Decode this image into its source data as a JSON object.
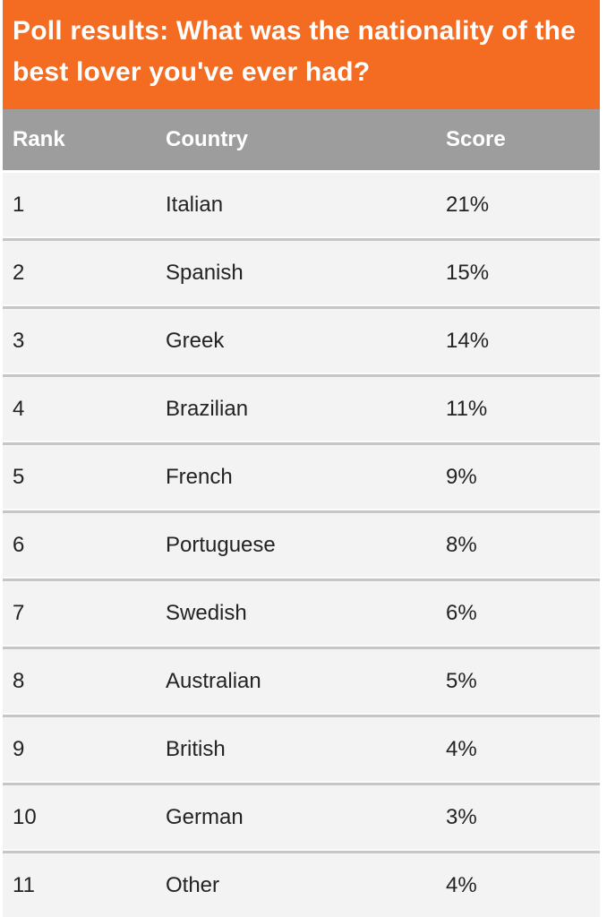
{
  "title": "Poll results: What was the nationality of the best lover you've ever had?",
  "colors": {
    "accent_orange": "#f36c21",
    "header_gray": "#9d9d9d",
    "row_background": "#f4f3f3",
    "divider_gray": "#c6c6c6",
    "title_text": "#ffffff",
    "row_text": "#232323"
  },
  "chart_data": {
    "type": "table",
    "title": "Poll results: What was the nationality of the best lover you've ever had?",
    "columns": [
      "Rank",
      "Country",
      "Score"
    ],
    "rows": [
      {
        "rank": "1",
        "country": "Italian",
        "score": "21%"
      },
      {
        "rank": "2",
        "country": "Spanish",
        "score": "15%"
      },
      {
        "rank": "3",
        "country": "Greek",
        "score": "14%"
      },
      {
        "rank": "4",
        "country": "Brazilian",
        "score": "11%"
      },
      {
        "rank": "5",
        "country": "French",
        "score": "9%"
      },
      {
        "rank": "6",
        "country": "Portuguese",
        "score": "8%"
      },
      {
        "rank": "7",
        "country": "Swedish",
        "score": "6%"
      },
      {
        "rank": "8",
        "country": "Australian",
        "score": "5%"
      },
      {
        "rank": "9",
        "country": "British",
        "score": "4%"
      },
      {
        "rank": "10",
        "country": "German",
        "score": "3%"
      },
      {
        "rank": "11",
        "country": "Other",
        "score": "4%"
      }
    ]
  }
}
